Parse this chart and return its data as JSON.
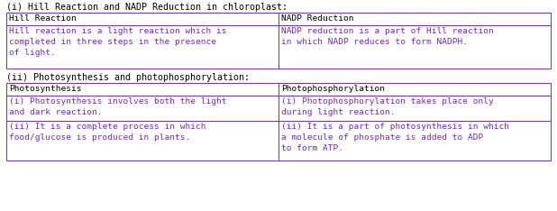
{
  "bg_color": "#ffffff",
  "border_color": "#7030a0",
  "header_text_color": "#000000",
  "cell_text_color": "#7030a0",
  "label_color": "#000000",
  "title1": "(i) Hill Reaction and NADP Reduction in chloroplast:",
  "title2": "(ii) Photosynthesis and photophosphorylation:",
  "table1_headers": [
    "Hill Reaction",
    "NADP Reduction"
  ],
  "table1_row": [
    "Hill reaction is a light reaction which is\ncompleted in three steps in the presence\nof light.",
    "NADP reduction is a part of Hill reaction\nin which NADP reduces to form NADPH."
  ],
  "table2_headers": [
    "Photosynthesis",
    "Photophosphorylation"
  ],
  "table2_rows": [
    [
      "(i) Photosynthesis involves both the light\nand dark reaction.",
      "(i) Photophosphorylation takes place only\nduring light reaction."
    ],
    [
      "(ii) It is a complete process in which\nfood/glucose is produced in plants.",
      "(ii) It is a part of photosynthesis in which\na molecule of phosphate is added to ADP\nto form ATP."
    ]
  ],
  "font_size": 6.8,
  "title_font_size": 7.2,
  "fig_w": 6.18,
  "fig_h": 2.34,
  "dpi": 100
}
